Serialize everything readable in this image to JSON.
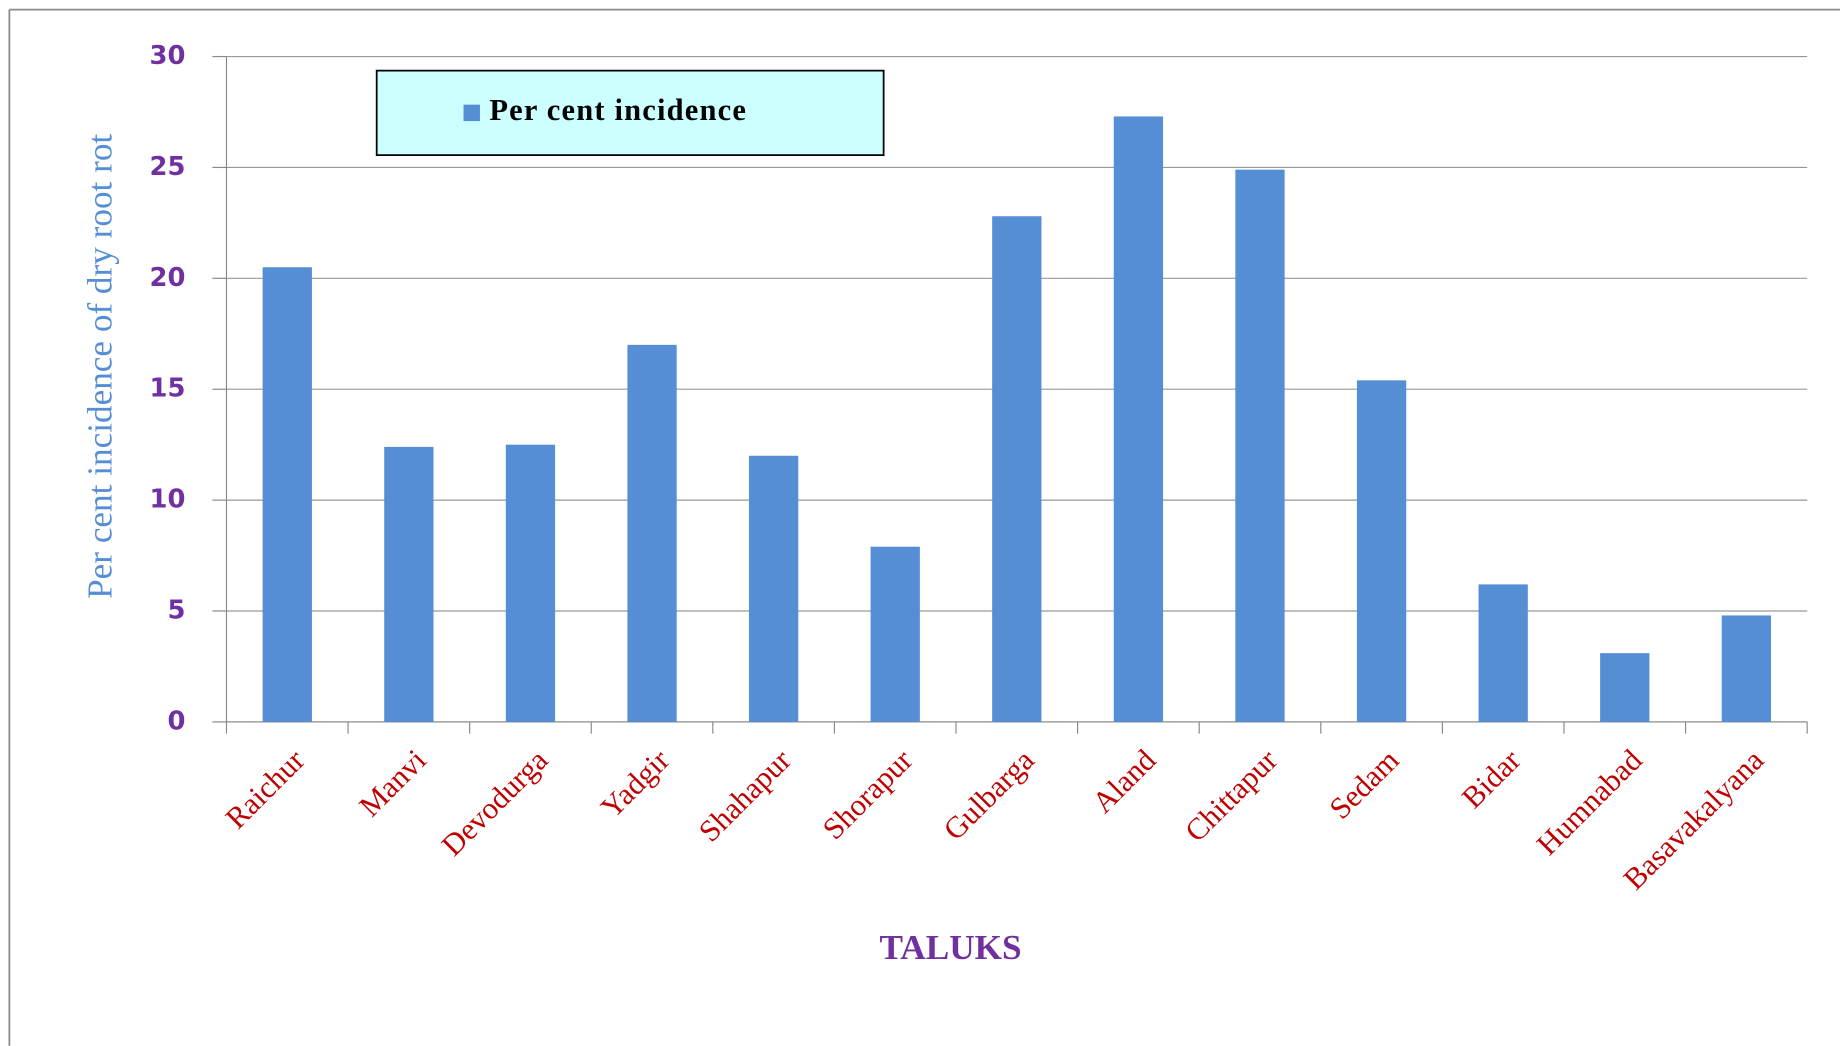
{
  "chart_data": {
    "type": "bar",
    "categories": [
      "Raichur",
      "Manvi",
      "Devodurga",
      "Yadgir",
      "Shahapur",
      "Shorapur",
      "Gulbarga",
      "Aland",
      "Chittapur",
      "Sedam",
      "Bidar",
      "Humnabad",
      "Basavakalyana"
    ],
    "series": [
      {
        "name": "Per cent incidence",
        "color": "#558ed5",
        "values": [
          20.5,
          12.4,
          12.5,
          17.0,
          12.0,
          7.9,
          22.8,
          27.3,
          24.9,
          15.4,
          6.2,
          3.1,
          4.8
        ]
      }
    ],
    "xlabel": "TALUKS",
    "ylabel": "Per cent incidence of dry root rot",
    "ylim": [
      0,
      30
    ],
    "yticks": [
      0,
      5,
      10,
      15,
      20,
      25,
      30
    ],
    "grid": true,
    "legend": "upper left"
  }
}
